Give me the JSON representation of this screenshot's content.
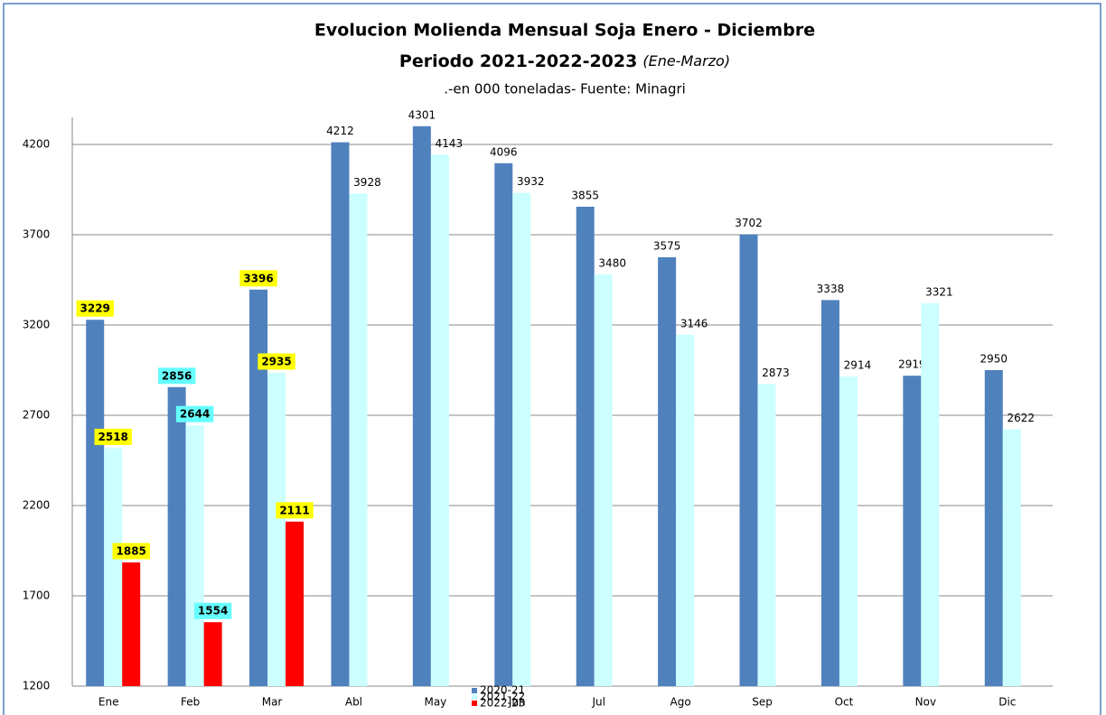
{
  "chart_data": {
    "type": "bar",
    "title": "Evolucion Molienda Mensual Soja Enero - Diciembre",
    "subtitle": "Periodo 2021-2022-2023",
    "subtitle_note": "(Ene-Marzo)",
    "caption": ".-en 000 toneladas- Fuente: Minagri",
    "categories": [
      "Ene",
      "Feb",
      "Mar",
      "Abl",
      "May",
      "Jun",
      "Jul",
      "Ago",
      "Sep",
      "Oct",
      "Nov",
      "Dic"
    ],
    "series": [
      {
        "name": "2020-21",
        "color": "#4f81bd",
        "values": [
          3229,
          2856,
          3396,
          4212,
          4301,
          4096,
          3855,
          3575,
          3702,
          3338,
          2919,
          2950
        ]
      },
      {
        "name": "2021-22",
        "color": "#ccffff",
        "values": [
          2518,
          2644,
          2935,
          3928,
          4143,
          3932,
          3480,
          3146,
          2873,
          2914,
          3321,
          2622
        ]
      },
      {
        "name": "2022-23",
        "color": "#ff0000",
        "values": [
          1885,
          1554,
          2111,
          null,
          null,
          null,
          null,
          null,
          null,
          null,
          null,
          null
        ]
      }
    ],
    "ylim": [
      1200,
      4350
    ],
    "yticks": [
      1200,
      1700,
      2200,
      2700,
      3200,
      3700,
      4200
    ],
    "grid": true
  }
}
